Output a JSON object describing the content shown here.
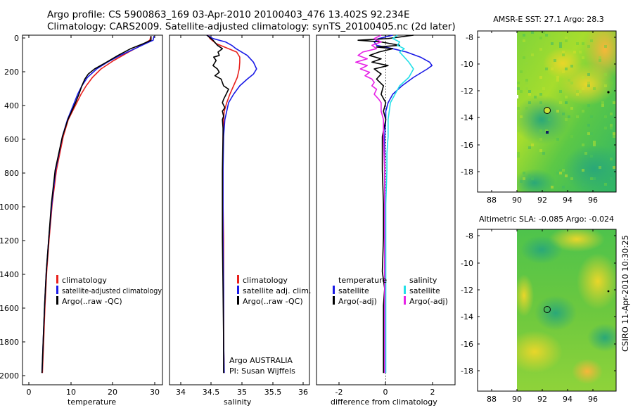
{
  "header": {
    "line1": "Argo profile: CS 5900863_169 03-Apr-2010 20100403_476 13.402S 92.234E",
    "line2": "Climatology: CARS2009. Satellite-adjusted climatology: synTS_20100405.nc (2d later)"
  },
  "credit": "CSIRO 11-Apr-2010 10:30:25",
  "colors": {
    "climatology": "#e8201c",
    "satellite": "#1a1ae6",
    "argo": "#000000",
    "sal_satellite": "#22e0e8",
    "sal_argo": "#e622e6"
  },
  "chart_data": [
    {
      "type": "line",
      "panel": "temperature",
      "xlabel": "temperature",
      "xlim": [
        -2,
        31
      ],
      "xticks": [
        "0",
        "10",
        "20",
        "30"
      ],
      "ylim": [
        2070,
        0
      ],
      "yticks": [
        "0",
        "200",
        "400",
        "600",
        "800",
        "1000",
        "1200",
        "1400",
        "1600",
        "1800",
        "2000"
      ],
      "legend": [
        "climatology",
        "satellite-adjusted climatology",
        "Argo(..raw -QC)"
      ],
      "series": [
        {
          "name": "climatology",
          "color": "climatology",
          "y": [
            5,
            30,
            60,
            100,
            150,
            200,
            250,
            300,
            350,
            400,
            500,
            600,
            800,
            1000,
            1200,
            1400,
            1600,
            1800,
            2000
          ],
          "x": [
            28.3,
            28,
            26,
            23,
            19.5,
            16.5,
            14.5,
            13,
            11.8,
            10.8,
            8.8,
            7.6,
            6,
            5,
            4.3,
            3.7,
            3.3,
            3,
            2.7
          ]
        },
        {
          "name": "satellite-adjusted climatology",
          "color": "satellite",
          "y": [
            5,
            30,
            50,
            80,
            120,
            160,
            200,
            250,
            300,
            350,
            400,
            500,
            600,
            800,
            1000,
            1200,
            1400,
            1600,
            1800,
            2000
          ],
          "x": [
            29,
            28.8,
            27,
            24.5,
            21,
            18,
            15.5,
            13.3,
            12,
            11,
            10.2,
            8.6,
            7.4,
            5.8,
            4.9,
            4.2,
            3.6,
            3.2,
            2.9,
            2.6
          ]
        },
        {
          "name": "Argo(..raw -QC)",
          "color": "argo",
          "y": [
            5,
            30,
            50,
            80,
            120,
            160,
            200,
            230,
            260,
            300,
            350,
            400,
            500,
            600,
            800,
            1000,
            1200,
            1400,
            1600,
            1800,
            2000
          ],
          "x": [
            28.3,
            28.3,
            26.5,
            23.5,
            20.5,
            17.8,
            15,
            13.5,
            12.7,
            12,
            11.3,
            10.5,
            8.7,
            7.4,
            5.7,
            4.8,
            4.2,
            3.6,
            3.2,
            2.9,
            2.6
          ]
        }
      ]
    },
    {
      "type": "line",
      "panel": "salinity",
      "xlabel": "salinity",
      "xlim": [
        33.85,
        36.1
      ],
      "xticks": [
        "34",
        "34.5",
        "35",
        "35.5",
        "36"
      ],
      "ylim": [
        2070,
        0
      ],
      "legend": [
        "climatology",
        "satellite adj. clim.",
        "Argo(..raw -QC)"
      ],
      "annotation": [
        "Argo AUSTRALIA",
        "PI: Susan Wijffels"
      ],
      "series": [
        {
          "name": "climatology",
          "color": "climatology",
          "y": [
            0,
            20,
            50,
            80,
            100,
            130,
            160,
            200,
            250,
            300,
            350,
            400,
            450,
            500,
            600,
            800,
            1000,
            1200,
            1500,
            1800,
            2000
          ],
          "x": [
            34.47,
            34.5,
            34.6,
            34.8,
            34.93,
            34.98,
            34.98,
            34.97,
            34.94,
            34.88,
            34.82,
            34.77,
            34.73,
            34.72,
            34.71,
            34.71,
            34.71,
            34.72,
            34.72,
            34.72,
            34.73
          ]
        },
        {
          "name": "satellite adj. clim.",
          "color": "satellite",
          "y": [
            0,
            20,
            40,
            60,
            80,
            120,
            160,
            200,
            230,
            260,
            300,
            350,
            400,
            450,
            500,
            550,
            600,
            800,
            1000,
            1200,
            1500,
            1800,
            2000
          ],
          "x": [
            34.45,
            34.55,
            34.75,
            34.85,
            34.92,
            35.1,
            35.2,
            35.25,
            35.2,
            35.1,
            34.98,
            34.88,
            34.8,
            34.77,
            34.74,
            34.73,
            34.72,
            34.71,
            34.71,
            34.71,
            34.72,
            34.72,
            34.73
          ]
        },
        {
          "name": "Argo(..raw -QC)",
          "color": "argo",
          "y": [
            0,
            30,
            60,
            80,
            100,
            120,
            130,
            150,
            180,
            200,
            220,
            240,
            260,
            300,
            320,
            350,
            380,
            400,
            430,
            450,
            480,
            500,
            550,
            600,
            800,
            1000,
            1200,
            1500,
            1800,
            2000
          ],
          "x": [
            34.45,
            34.55,
            34.62,
            34.7,
            34.63,
            34.65,
            34.56,
            34.6,
            34.55,
            34.62,
            34.65,
            34.58,
            34.68,
            34.72,
            34.8,
            34.76,
            34.72,
            34.7,
            34.74,
            34.7,
            34.72,
            34.7,
            34.71,
            34.71,
            34.7,
            34.7,
            34.7,
            34.71,
            34.72,
            34.72
          ]
        }
      ]
    },
    {
      "type": "line",
      "panel": "difference",
      "xlabel": "difference from climatology",
      "xlim": [
        -3,
        3
      ],
      "xticks": [
        "-2",
        "0",
        "2"
      ],
      "ylim": [
        2070,
        0
      ],
      "legend_titles": [
        "temperature",
        "salinity"
      ],
      "legend_temperature": [
        "satellite",
        "Argo(-adj)"
      ],
      "legend_salinity": [
        "satellite",
        "Argo(-adj)"
      ],
      "series": [
        {
          "name": "satellite",
          "group": "temperature",
          "color": "satellite",
          "y": [
            0,
            20,
            40,
            60,
            80,
            100,
            130,
            160,
            180,
            200,
            250,
            300,
            350,
            400,
            450,
            500,
            600,
            800,
            1000,
            1200,
            1500,
            1800,
            2000
          ],
          "x": [
            0.3,
            -0.3,
            -0.5,
            -0.4,
            0.3,
            0.9,
            1.5,
            1.9,
            2.0,
            1.8,
            1.2,
            0.7,
            0.3,
            0.1,
            0,
            0,
            -0.05,
            -0.05,
            -0.05,
            -0.05,
            -0.05,
            -0.05,
            -0.05
          ]
        },
        {
          "name": "Argo(-adj)",
          "group": "temperature",
          "color": "argo",
          "y": [
            0,
            20,
            30,
            40,
            60,
            70,
            80,
            100,
            120,
            140,
            160,
            180,
            200,
            230,
            260,
            300,
            350,
            400,
            450,
            500,
            600,
            800,
            1000,
            1200,
            1400,
            1500,
            1600,
            1800,
            2000
          ],
          "x": [
            1.2,
            0.1,
            -1.2,
            -0.2,
            0.6,
            -0.4,
            0.3,
            -0.3,
            -0.7,
            -0.2,
            -0.6,
            0.1,
            -0.5,
            -0.2,
            -0.4,
            -0.1,
            -0.2,
            0,
            -0.1,
            0,
            -0.15,
            -0.15,
            -0.1,
            -0.1,
            -0.15,
            -0.05,
            -0.1,
            -0.1,
            -0.1
          ]
        },
        {
          "name": "satellite",
          "group": "salinity",
          "color": "sal_satellite",
          "y": [
            0,
            20,
            40,
            60,
            80,
            100,
            130,
            160,
            200,
            250,
            300,
            350,
            400,
            500,
            600,
            700,
            800,
            1000,
            1200,
            1500,
            1800,
            2000
          ],
          "x": [
            0.5,
            0.3,
            0.6,
            0.5,
            0.8,
            0.6,
            0.8,
            1.0,
            1.2,
            1.0,
            0.6,
            0.4,
            0.2,
            0.1,
            0.1,
            0.05,
            0.05,
            0,
            0,
            0,
            0,
            0
          ]
        },
        {
          "name": "Argo(-adj)",
          "group": "salinity",
          "color": "sal_argo",
          "y": [
            0,
            20,
            40,
            60,
            80,
            100,
            120,
            140,
            160,
            180,
            200,
            220,
            240,
            260,
            280,
            300,
            320,
            350,
            380,
            400,
            450,
            500,
            600,
            800,
            1000,
            1200,
            1500,
            1800,
            2000
          ],
          "x": [
            -0.2,
            -0.5,
            -0.2,
            -0.6,
            -0.4,
            -1.0,
            -1.2,
            -0.8,
            -1.3,
            -0.8,
            -1.1,
            -0.7,
            -0.9,
            -0.6,
            -0.5,
            -0.6,
            -0.4,
            -0.5,
            -0.3,
            -0.2,
            -0.2,
            -0.1,
            -0.1,
            -0.05,
            -0.05,
            -0.05,
            -0.05,
            -0.05,
            -0.05
          ]
        }
      ]
    },
    {
      "type": "heatmap",
      "panel": "sst-map",
      "title": "AMSR-E SST: 27.1 Argo: 28.3",
      "xlim": [
        86.5,
        97.5
      ],
      "ylim": [
        -19.5,
        -7.5
      ],
      "data_x_start": 90,
      "xticks": [
        88,
        90,
        92,
        94,
        96
      ],
      "yticks": [
        -8,
        -10,
        -12,
        -14,
        -16,
        -18
      ],
      "profile_marker": {
        "lon": 92.234,
        "lat": -13.402
      },
      "second_marker": {
        "lon": 96.9,
        "lat": -12.2
      }
    },
    {
      "type": "heatmap",
      "panel": "sla-map",
      "title": "Altimetric SLA: -0.085 Argo: -0.024",
      "xlim": [
        86.5,
        97.5
      ],
      "ylim": [
        -19.5,
        -7.5
      ],
      "data_x_start": 90,
      "xticks": [
        88,
        90,
        92,
        94,
        96
      ],
      "yticks": [
        -8,
        -10,
        -12,
        -14,
        -16,
        -18
      ],
      "profile_marker": {
        "lon": 92.234,
        "lat": -13.402
      },
      "second_marker": {
        "lon": 96.9,
        "lat": -12.2
      }
    }
  ]
}
